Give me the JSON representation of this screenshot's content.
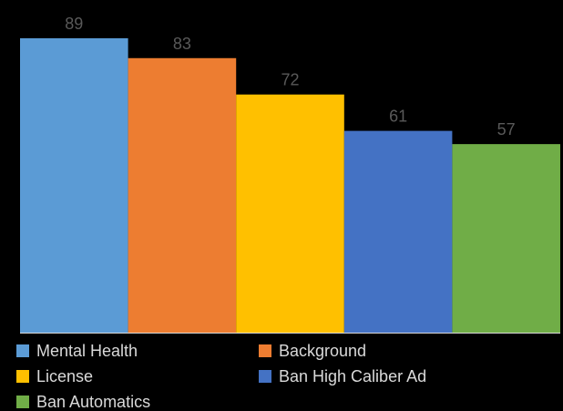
{
  "chart_data": {
    "type": "bar",
    "title": "",
    "xlabel": "",
    "ylabel": "",
    "ylim": [
      0,
      89
    ],
    "grid": false,
    "legend_position": "bottom",
    "categories": [
      "Mental Health",
      "Background",
      "License",
      "Ban High Caliber Ad",
      "Ban Automatics"
    ],
    "values": [
      89,
      83,
      72,
      61,
      57
    ],
    "colors": [
      "#5B9BD5",
      "#ED7D31",
      "#FFC000",
      "#4472C4",
      "#70AD47"
    ],
    "label_color": "#595959",
    "legend_text_color": "#D9D9D9",
    "axis_color": "#D9D9D9"
  }
}
